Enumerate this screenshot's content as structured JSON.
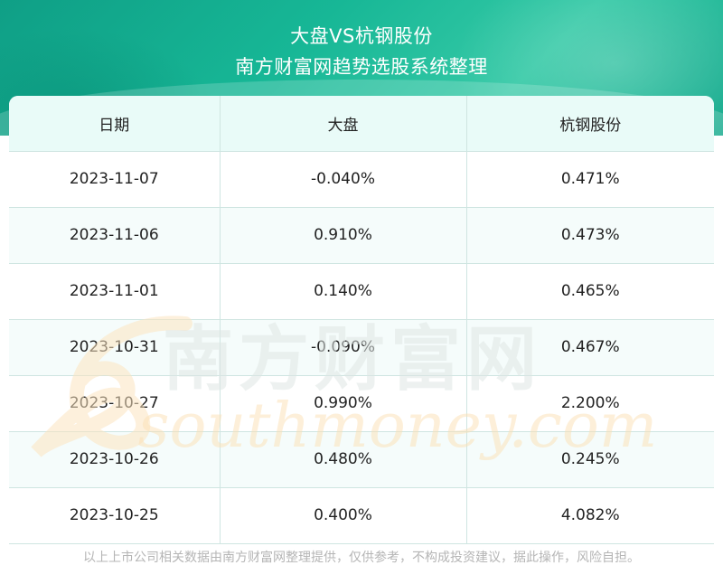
{
  "header": {
    "title": "大盘VS杭钢股份",
    "subtitle": "南方财富网趋势选股系统整理"
  },
  "table": {
    "columns": [
      "日期",
      "大盘",
      "杭钢股份"
    ],
    "rows": [
      [
        "2023-11-07",
        "-0.040%",
        "0.471%"
      ],
      [
        "2023-11-06",
        "0.910%",
        "0.473%"
      ],
      [
        "2023-11-01",
        "0.140%",
        "0.465%"
      ],
      [
        "2023-10-31",
        "-0.090%",
        "0.467%"
      ],
      [
        "2023-10-27",
        "0.990%",
        "2.200%"
      ],
      [
        "2023-10-26",
        "0.480%",
        "0.245%"
      ],
      [
        "2023-10-25",
        "0.400%",
        "4.082%"
      ]
    ]
  },
  "watermark": {
    "cn": "南方财富网",
    "en": "southmoney.com"
  },
  "footer": {
    "disclaimer": "以上上市公司相关数据由南方财富网整理提供，仅供参考，不构成投资建议，据此操作，风险自担。"
  },
  "colors": {
    "header_teal": "#17b796",
    "table_header_bg": "#e9fbf8",
    "grid_line": "#cfe5e1"
  }
}
